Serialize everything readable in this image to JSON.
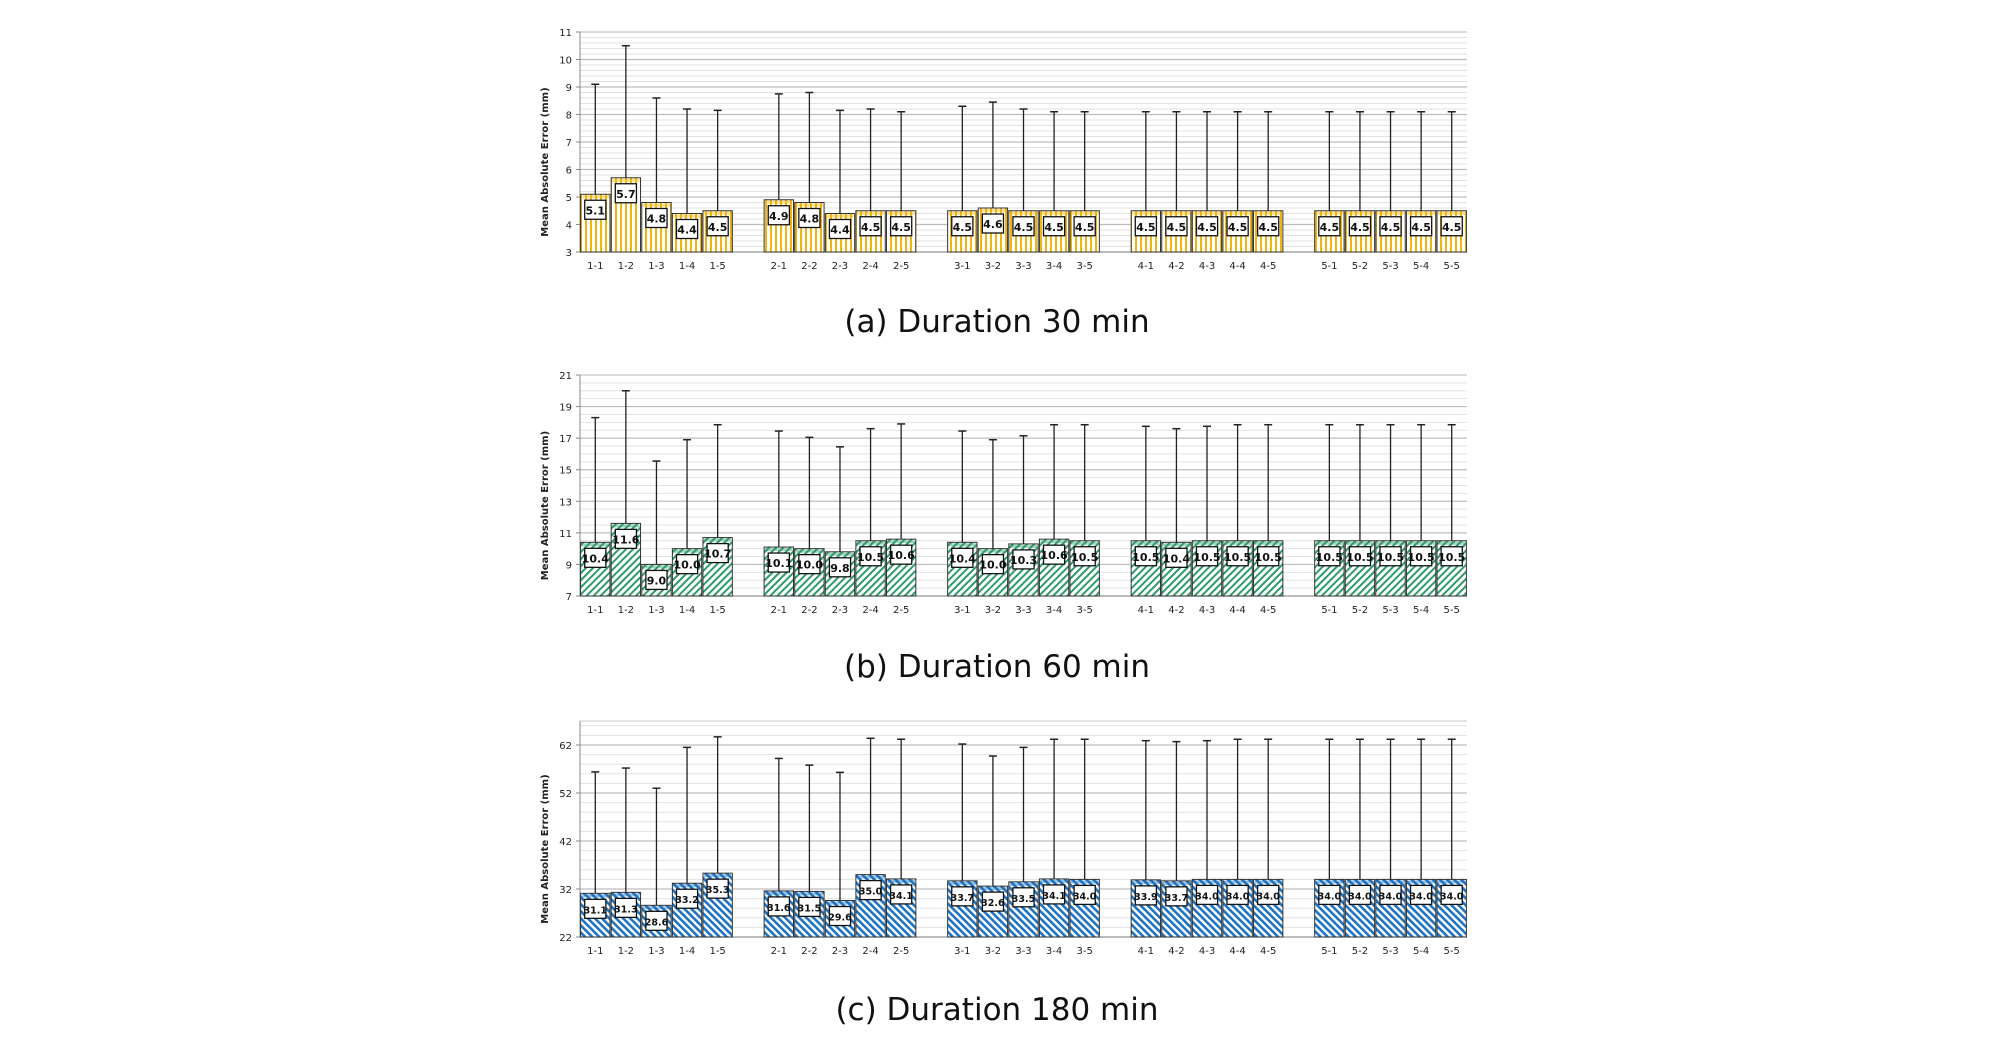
{
  "chart_data": [
    {
      "type": "bar",
      "caption": "(a) Duration 30 min",
      "ylabel": "Mean Absolute Error (mm)",
      "ylim": [
        3,
        11
      ],
      "yticks": [
        3,
        4,
        5,
        6,
        7,
        8,
        9,
        10,
        11
      ],
      "major_step": 1,
      "minor_step": 0.2,
      "color": "#f2b50f",
      "pattern": "vertical",
      "categories": [
        "1-1",
        "1-2",
        "1-3",
        "1-4",
        "1-5",
        "2-1",
        "2-2",
        "2-3",
        "2-4",
        "2-5",
        "3-1",
        "3-2",
        "3-3",
        "3-4",
        "3-5",
        "4-1",
        "4-2",
        "4-3",
        "4-4",
        "4-5",
        "5-1",
        "5-2",
        "5-3",
        "5-4",
        "5-5"
      ],
      "values": [
        5.1,
        5.7,
        4.8,
        4.4,
        4.5,
        4.9,
        4.8,
        4.4,
        4.5,
        4.5,
        4.5,
        4.6,
        4.5,
        4.5,
        4.5,
        4.5,
        4.5,
        4.5,
        4.5,
        4.5,
        4.5,
        4.5,
        4.5,
        4.5,
        4.5
      ],
      "error_top": [
        9.1,
        10.5,
        8.6,
        8.2,
        8.15,
        8.75,
        8.8,
        8.15,
        8.2,
        8.1,
        8.3,
        8.45,
        8.2,
        8.1,
        8.1,
        8.1,
        8.1,
        8.1,
        8.1,
        8.1,
        8.1,
        8.1,
        8.1,
        8.1,
        8.1
      ]
    },
    {
      "type": "bar",
      "caption": "(b) Duration 60 min",
      "ylabel": "Mean Absolute Error (mm)",
      "ylim": [
        7,
        21
      ],
      "yticks": [
        7,
        9,
        11,
        13,
        15,
        17,
        19,
        21
      ],
      "major_step": 2,
      "minor_step": 0.5,
      "color": "#2e9c6a",
      "pattern": "diag-right",
      "categories": [
        "1-1",
        "1-2",
        "1-3",
        "1-4",
        "1-5",
        "2-1",
        "2-2",
        "2-3",
        "2-4",
        "2-5",
        "3-1",
        "3-2",
        "3-3",
        "3-4",
        "3-5",
        "4-1",
        "4-2",
        "4-3",
        "4-4",
        "4-5",
        "5-1",
        "5-2",
        "5-3",
        "5-4",
        "5-5"
      ],
      "values": [
        10.4,
        11.6,
        9.0,
        10.0,
        10.7,
        10.1,
        10.0,
        9.8,
        10.5,
        10.6,
        10.4,
        10.0,
        10.3,
        10.6,
        10.5,
        10.5,
        10.4,
        10.5,
        10.5,
        10.5,
        10.5,
        10.5,
        10.5,
        10.5,
        10.5
      ],
      "error_top": [
        18.3,
        20.0,
        15.55,
        16.9,
        17.85,
        17.45,
        17.05,
        16.45,
        17.6,
        17.9,
        17.45,
        16.9,
        17.15,
        17.85,
        17.85,
        17.75,
        17.6,
        17.75,
        17.85,
        17.85,
        17.85,
        17.85,
        17.85,
        17.85,
        17.85
      ]
    },
    {
      "type": "bar",
      "caption": "(c) Duration 180 min",
      "ylabel": "Mean Absolute Error (mm)",
      "ylim": [
        22,
        67
      ],
      "yticks": [
        22,
        32,
        42,
        52,
        62
      ],
      "major_step": 10,
      "minor_step": 2,
      "color": "#1f74c2",
      "pattern": "diag-left",
      "categories": [
        "1-1",
        "1-2",
        "1-3",
        "1-4",
        "1-5",
        "2-1",
        "2-2",
        "2-3",
        "2-4",
        "2-5",
        "3-1",
        "3-2",
        "3-3",
        "3-4",
        "3-5",
        "4-1",
        "4-2",
        "4-3",
        "4-4",
        "4-5",
        "5-1",
        "5-2",
        "5-3",
        "5-4",
        "5-5"
      ],
      "values": [
        31.1,
        31.3,
        28.6,
        33.2,
        35.3,
        31.6,
        31.5,
        29.6,
        35.0,
        34.1,
        33.7,
        32.6,
        33.5,
        34.1,
        34.0,
        33.9,
        33.7,
        34.0,
        34.0,
        34.0,
        34.0,
        34.0,
        34.0,
        34.0,
        34.0
      ],
      "error_top": [
        56.4,
        57.2,
        53.0,
        61.5,
        63.7,
        59.2,
        57.8,
        56.3,
        63.4,
        63.2,
        62.2,
        59.7,
        61.5,
        63.2,
        63.2,
        62.9,
        62.7,
        62.9,
        63.2,
        63.2,
        63.2,
        63.2,
        63.2,
        63.2,
        63.2
      ]
    }
  ]
}
